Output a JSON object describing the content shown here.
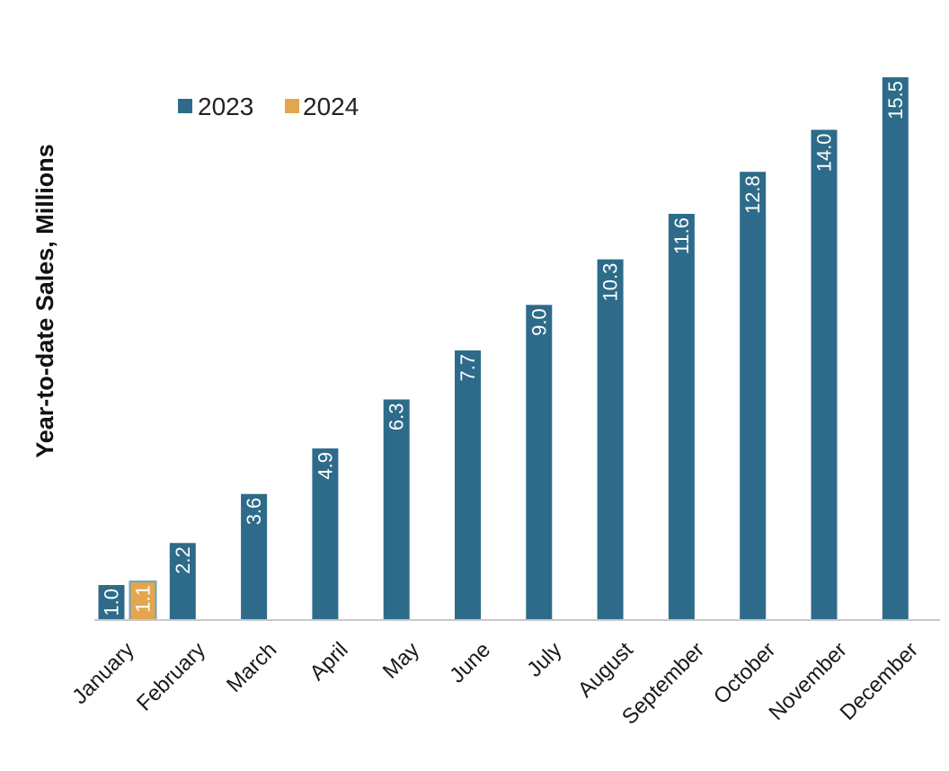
{
  "chart_data": {
    "type": "bar",
    "title": "",
    "xlabel": "",
    "ylabel": "Year-to-date Sales, Millions",
    "ylim": [
      0,
      15.5
    ],
    "grid": false,
    "legend_position": "top-left",
    "categories": [
      "January",
      "February",
      "March",
      "April",
      "May",
      "June",
      "July",
      "August",
      "September",
      "October",
      "November",
      "December"
    ],
    "series": [
      {
        "name": "2023",
        "color": "#2e6b8a",
        "values": [
          1.0,
          2.2,
          3.6,
          4.9,
          6.3,
          7.7,
          9.0,
          10.3,
          11.6,
          12.8,
          14.0,
          15.5
        ],
        "labels": [
          "1.0",
          "2.2",
          "3.6",
          "4.9",
          "6.3",
          "7.7",
          "9.0",
          "10.3",
          "11.6",
          "12.8",
          "14.0",
          "15.5"
        ]
      },
      {
        "name": "2024",
        "color": "#e3a64e",
        "values": [
          1.1,
          null,
          null,
          null,
          null,
          null,
          null,
          null,
          null,
          null,
          null,
          null
        ],
        "labels": [
          "1.1",
          null,
          null,
          null,
          null,
          null,
          null,
          null,
          null,
          null,
          null,
          null
        ]
      }
    ]
  },
  "colors": {
    "series_2023": "#2e6b8a",
    "series_2024": "#e3a64e",
    "axis_line": "#c8c8c8"
  }
}
